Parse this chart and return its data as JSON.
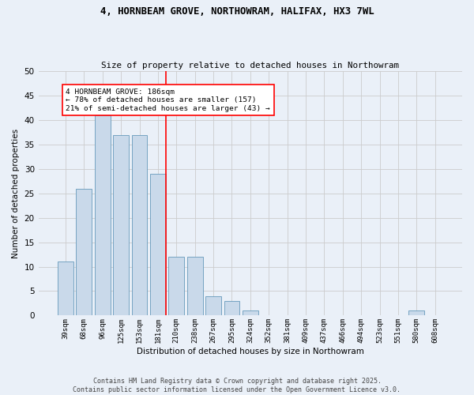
{
  "title_line1": "4, HORNBEAM GROVE, NORTHOWRAM, HALIFAX, HX3 7WL",
  "title_line2": "Size of property relative to detached houses in Northowram",
  "xlabel": "Distribution of detached houses by size in Northowram",
  "ylabel": "Number of detached properties",
  "categories": [
    "39sqm",
    "68sqm",
    "96sqm",
    "125sqm",
    "153sqm",
    "181sqm",
    "210sqm",
    "238sqm",
    "267sqm",
    "295sqm",
    "324sqm",
    "352sqm",
    "381sqm",
    "409sqm",
    "437sqm",
    "466sqm",
    "494sqm",
    "523sqm",
    "551sqm",
    "580sqm",
    "608sqm"
  ],
  "values": [
    11,
    26,
    41,
    37,
    37,
    29,
    12,
    12,
    4,
    3,
    1,
    0,
    0,
    0,
    0,
    0,
    0,
    0,
    0,
    1,
    0
  ],
  "bar_color": "#c9d9ea",
  "bar_edge_color": "#6699bb",
  "vline_index": 5,
  "vline_color": "red",
  "annotation_text": "4 HORNBEAM GROVE: 186sqm\n← 78% of detached houses are smaller (157)\n21% of semi-detached houses are larger (43) →",
  "annotation_box_color": "white",
  "annotation_box_edge": "red",
  "ylim": [
    0,
    50
  ],
  "yticks": [
    0,
    5,
    10,
    15,
    20,
    25,
    30,
    35,
    40,
    45,
    50
  ],
  "grid_color": "#cccccc",
  "bg_color": "#eaf0f8",
  "footer": "Contains HM Land Registry data © Crown copyright and database right 2025.\nContains public sector information licensed under the Open Government Licence v3.0."
}
